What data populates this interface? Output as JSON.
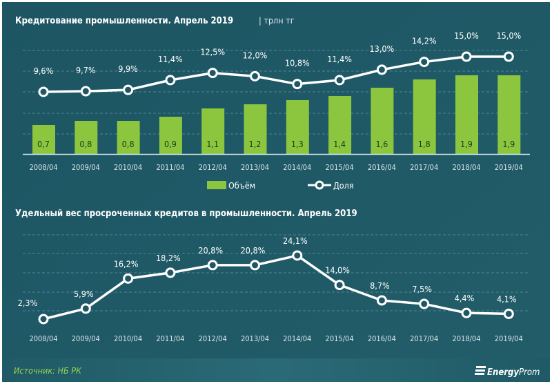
{
  "colors": {
    "background": "#1f5865",
    "bar": "#8cc63f",
    "line": "#ffffff",
    "grid": "#4f8490",
    "source": "#9ad14b"
  },
  "chart_data": [
    {
      "type": "bar+line",
      "title": "Кредитование  промышленности.  Апрель 2019",
      "unit": "| трлн тг",
      "categories": [
        "2008/04",
        "2009/04",
        "2010/04",
        "2011/04",
        "2012/04",
        "2013/04",
        "2014/04",
        "2015/04",
        "2016/04",
        "2017/04",
        "2018/04",
        "2019/04"
      ],
      "series": [
        {
          "name": "Объём",
          "type": "bar",
          "values": [
            0.7,
            0.8,
            0.8,
            0.9,
            1.1,
            1.2,
            1.3,
            1.4,
            1.6,
            1.8,
            1.9,
            1.9
          ],
          "labels": [
            "0,7",
            "0,8",
            "0,8",
            "0,9",
            "1,1",
            "1,2",
            "1,3",
            "1,4",
            "1,6",
            "1,8",
            "1,9",
            "1,9"
          ]
        },
        {
          "name": "Доля",
          "type": "line",
          "values": [
            9.6,
            9.7,
            9.9,
            11.4,
            12.5,
            12.0,
            10.8,
            11.4,
            13.0,
            14.2,
            15.0,
            15.0
          ],
          "labels": [
            "9,6%",
            "9,7%",
            "9,9%",
            "11,4%",
            "12,5%",
            "12,0%",
            "10,8%",
            "11,4%",
            "13,0%",
            "14,2%",
            "15,0%",
            "15,0%"
          ]
        }
      ],
      "legend": "bottom-center",
      "grid": true
    },
    {
      "type": "line",
      "title": "Удельный  вес  просроченных  кредитов  в  промышленности.  Апрель 2019",
      "categories": [
        "2008/04",
        "2009/04",
        "2010/04",
        "2011/04",
        "2012/04",
        "2013/04",
        "2014/04",
        "2015/04",
        "2016/04",
        "2017/04",
        "2018/04",
        "2019/04"
      ],
      "series": [
        {
          "name": "Удельный вес",
          "values": [
            2.3,
            5.9,
            16.2,
            18.2,
            20.8,
            20.8,
            24.1,
            14.0,
            8.7,
            7.5,
            4.4,
            4.1
          ],
          "labels": [
            "2,3%",
            "5,9%",
            "16,2%",
            "18,2%",
            "20,8%",
            "20,8%",
            "24,1%",
            "14,0%",
            "8,7%",
            "7,5%",
            "4,4%",
            "4,1%"
          ]
        }
      ],
      "grid": true
    }
  ],
  "footer": {
    "source": "Источник: НБ РК",
    "logo_bold": "Energy",
    "logo_light": "Prom"
  }
}
